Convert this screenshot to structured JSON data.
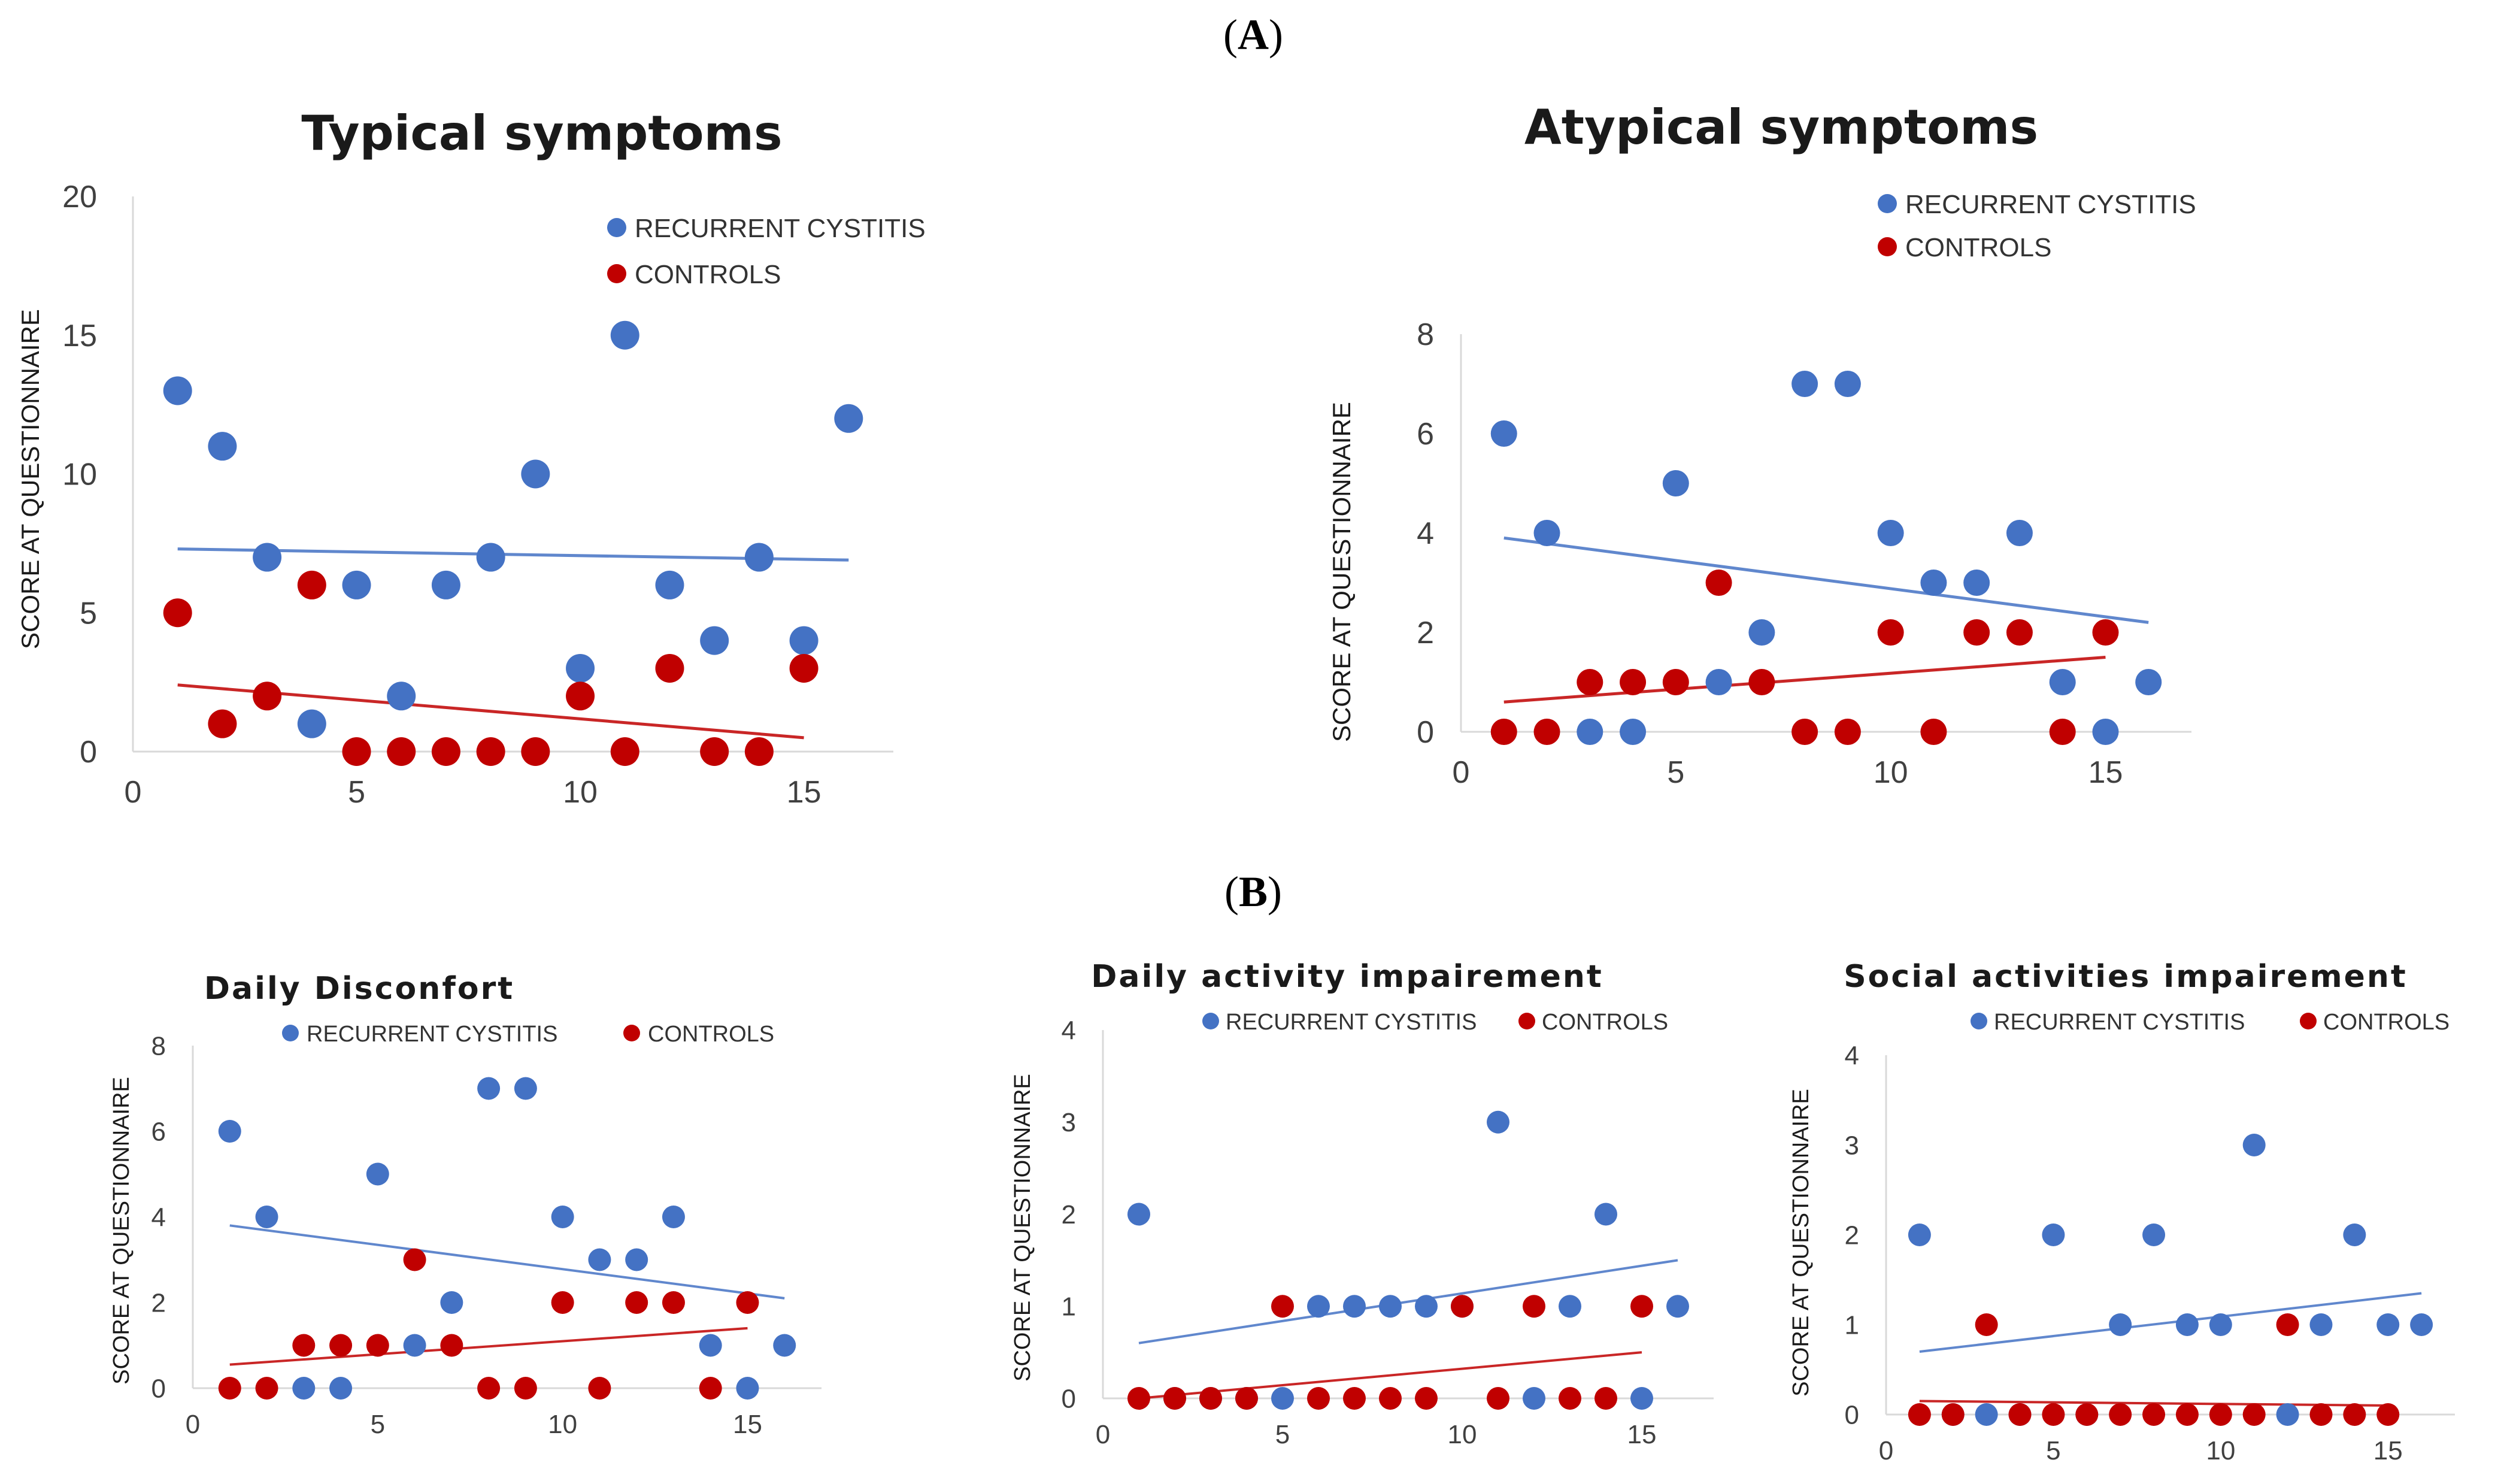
{
  "panel_labels": {
    "a": "A",
    "b": "B"
  },
  "colors": {
    "recurrent": "#4472c4",
    "controls": "#c00000",
    "recurrent_trend": "#4472c4",
    "controls_trend": "#c00000",
    "axis": "#d9d9d9"
  },
  "chart_data": [
    {
      "id": "typical",
      "type": "scatter",
      "title": "Typical symptoms",
      "xlabel": "",
      "ylabel": "SCORE AT QUESTIONNAIRE",
      "xlim": [
        0,
        17
      ],
      "ylim": [
        0,
        20
      ],
      "xticks": [
        0,
        5,
        10,
        15
      ],
      "yticks": [
        0,
        5,
        10,
        15,
        20
      ],
      "legend": [
        "RECURRENT CYSTITIS",
        "CONTROLS"
      ],
      "legend_position": "top-right",
      "series": [
        {
          "name": "RECURRENT CYSTITIS",
          "x": [
            1,
            2,
            3,
            4,
            5,
            6,
            7,
            8,
            9,
            10,
            11,
            12,
            13,
            14,
            15,
            16
          ],
          "y": [
            13,
            11,
            7,
            1,
            6,
            2,
            6,
            7,
            10,
            3,
            15,
            6,
            4,
            7,
            4,
            12
          ],
          "trend": [
            [
              1,
              7.3
            ],
            [
              16,
              6.9
            ]
          ]
        },
        {
          "name": "CONTROLS",
          "x": [
            1,
            2,
            3,
            4,
            5,
            6,
            7,
            8,
            9,
            10,
            11,
            12,
            13,
            14,
            15
          ],
          "y": [
            5,
            1,
            2,
            6,
            0,
            0,
            0,
            0,
            0,
            2,
            0,
            3,
            0,
            0,
            3
          ],
          "trend": [
            [
              1,
              2.4
            ],
            [
              15,
              0.5
            ]
          ]
        }
      ]
    },
    {
      "id": "atypical",
      "type": "scatter",
      "title": "Atypical symptoms",
      "xlabel": "",
      "ylabel": "SCORE AT QUESTIONNAIRE",
      "xlim": [
        0,
        17
      ],
      "ylim": [
        0,
        8
      ],
      "xticks": [
        0,
        5,
        10,
        15
      ],
      "yticks": [
        0,
        2,
        4,
        6,
        8
      ],
      "legend": [
        "RECURRENT CYSTITIS",
        "CONTROLS"
      ],
      "legend_position": "top-right",
      "series": [
        {
          "name": "RECURRENT CYSTITIS",
          "x": [
            1,
            2,
            3,
            4,
            5,
            6,
            7,
            8,
            9,
            10,
            11,
            12,
            13,
            14,
            15,
            16
          ],
          "y": [
            6,
            4,
            0,
            0,
            5,
            1,
            2,
            7,
            7,
            4,
            3,
            3,
            4,
            1,
            0,
            1
          ],
          "trend": [
            [
              1,
              3.9
            ],
            [
              16,
              2.2
            ]
          ]
        },
        {
          "name": "CONTROLS",
          "x": [
            1,
            2,
            3,
            4,
            5,
            6,
            7,
            8,
            9,
            10,
            11,
            12,
            13,
            14,
            15
          ],
          "y": [
            0,
            0,
            1,
            1,
            1,
            3,
            1,
            0,
            0,
            2,
            0,
            2,
            2,
            0,
            2
          ],
          "trend": [
            [
              1,
              0.6
            ],
            [
              15,
              1.5
            ]
          ]
        }
      ]
    },
    {
      "id": "discomfort",
      "type": "scatter",
      "title": "Daily Disconfort",
      "xlabel": "",
      "ylabel": "SCORE AT QUESTIONNAIRE",
      "xlim": [
        0,
        17
      ],
      "ylim": [
        0,
        8
      ],
      "xticks": [
        0,
        5,
        10,
        15
      ],
      "yticks": [
        0,
        2,
        4,
        6,
        8
      ],
      "legend": [
        "RECURRENT CYSTITIS",
        "CONTROLS"
      ],
      "legend_position": "top",
      "series": [
        {
          "name": "RECURRENT CYSTITIS",
          "x": [
            1,
            2,
            3,
            4,
            5,
            6,
            7,
            8,
            9,
            10,
            11,
            12,
            13,
            14,
            15,
            16
          ],
          "y": [
            6,
            4,
            0,
            0,
            5,
            1,
            2,
            7,
            7,
            4,
            3,
            3,
            4,
            1,
            0,
            1
          ],
          "trend": [
            [
              1,
              3.8
            ],
            [
              16,
              2.1
            ]
          ]
        },
        {
          "name": "CONTROLS",
          "x": [
            1,
            2,
            3,
            4,
            5,
            6,
            7,
            8,
            9,
            10,
            11,
            12,
            13,
            14,
            15
          ],
          "y": [
            0,
            0,
            1,
            1,
            1,
            3,
            1,
            0,
            0,
            2,
            0,
            2,
            2,
            0,
            2
          ],
          "trend": [
            [
              1,
              0.55
            ],
            [
              15,
              1.4
            ]
          ]
        }
      ]
    },
    {
      "id": "activity",
      "type": "scatter",
      "title": "Daily activity impairement",
      "xlabel": "",
      "ylabel": "SCORE AT QUESTIONNAIRE",
      "xlim": [
        0,
        17
      ],
      "ylim": [
        0,
        4
      ],
      "xticks": [
        0,
        5,
        10,
        15
      ],
      "yticks": [
        0,
        1,
        2,
        3,
        4
      ],
      "legend": [
        "RECURRENT CYSTITIS",
        "CONTROLS"
      ],
      "legend_position": "top",
      "series": [
        {
          "name": "RECURRENT CYSTITIS",
          "x": [
            1,
            2,
            3,
            4,
            5,
            6,
            7,
            8,
            9,
            10,
            11,
            12,
            13,
            14,
            15,
            16
          ],
          "y": [
            2,
            0,
            0,
            0,
            0,
            1,
            1,
            1,
            1,
            1,
            3,
            0,
            1,
            2,
            0,
            1
          ],
          "trend": [
            [
              1,
              0.6
            ],
            [
              16,
              1.5
            ]
          ]
        },
        {
          "name": "CONTROLS",
          "x": [
            1,
            2,
            3,
            4,
            5,
            6,
            7,
            8,
            9,
            10,
            11,
            12,
            13,
            14,
            15
          ],
          "y": [
            0,
            0,
            0,
            0,
            1,
            0,
            0,
            0,
            0,
            1,
            0,
            1,
            0,
            0,
            1
          ],
          "trend": [
            [
              1,
              0.0
            ],
            [
              15,
              0.5
            ]
          ]
        }
      ]
    },
    {
      "id": "social",
      "type": "scatter",
      "title": "Social activities impairement",
      "xlabel": "",
      "ylabel": "SCORE AT QUESTIONNAIRE",
      "xlim": [
        0,
        17
      ],
      "ylim": [
        0,
        4
      ],
      "xticks": [
        0,
        5,
        10,
        15
      ],
      "yticks": [
        0,
        1,
        2,
        3,
        4
      ],
      "legend": [
        "RECURRENT CYSTITIS",
        "CONTROLS"
      ],
      "legend_position": "top",
      "series": [
        {
          "name": "RECURRENT CYSTITIS",
          "x": [
            1,
            2,
            3,
            4,
            5,
            6,
            7,
            8,
            9,
            10,
            11,
            12,
            13,
            14,
            15,
            16
          ],
          "y": [
            2,
            0,
            0,
            0,
            2,
            0,
            1,
            2,
            1,
            1,
            3,
            0,
            1,
            2,
            1,
            1
          ],
          "trend": [
            [
              1,
              0.7
            ],
            [
              16,
              1.35
            ]
          ]
        },
        {
          "name": "CONTROLS",
          "x": [
            1,
            2,
            3,
            4,
            5,
            6,
            7,
            8,
            9,
            10,
            11,
            12,
            13,
            14,
            15
          ],
          "y": [
            0,
            0,
            1,
            0,
            0,
            0,
            0,
            0,
            0,
            0,
            0,
            1,
            0,
            0,
            0
          ],
          "trend": [
            [
              1,
              0.15
            ],
            [
              15,
              0.1
            ]
          ]
        }
      ]
    }
  ]
}
